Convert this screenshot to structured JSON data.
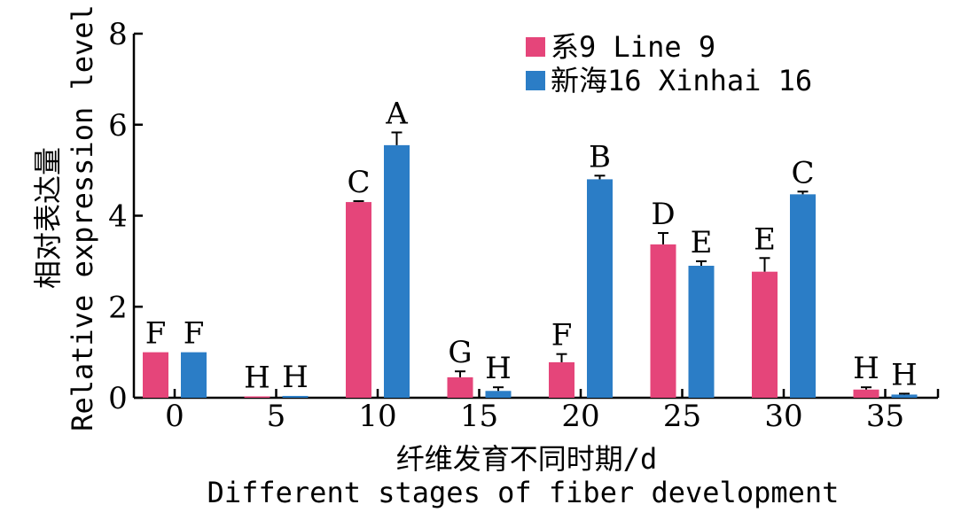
{
  "chart_data": {
    "type": "bar",
    "xlabel_cn": "纤维发育不同时期/d",
    "xlabel_en": "Different stages of fiber development",
    "ylabel_cn": "相对表达量",
    "ylabel_en": "Relative expression level",
    "categories": [
      "0",
      "5",
      "10",
      "15",
      "20",
      "25",
      "30",
      "35"
    ],
    "ylim": [
      0,
      8
    ],
    "yticks": [
      "0",
      "2",
      "4",
      "6",
      "8"
    ],
    "grid": false,
    "legend_position": "top-right",
    "series": [
      {
        "name": "系9 Line 9",
        "color": "#e5457a",
        "values": [
          1.0,
          0.03,
          4.3,
          0.45,
          0.78,
          3.37,
          2.77,
          0.18
        ],
        "errors": [
          0,
          0,
          0.02,
          0.13,
          0.18,
          0.25,
          0.3,
          0.05
        ],
        "labels": [
          "F",
          "H",
          "C",
          "G",
          "F",
          "D",
          "E",
          "H"
        ]
      },
      {
        "name": "新海16 Xinhai 16",
        "color": "#2b7dc6",
        "values": [
          1.0,
          0.04,
          5.55,
          0.15,
          4.8,
          2.9,
          4.47,
          0.07
        ],
        "errors": [
          0,
          0,
          0.28,
          0.08,
          0.08,
          0.1,
          0.06,
          0.02
        ],
        "labels": [
          "F",
          "H",
          "A",
          "H",
          "B",
          "E",
          "C",
          "H"
        ]
      }
    ]
  }
}
